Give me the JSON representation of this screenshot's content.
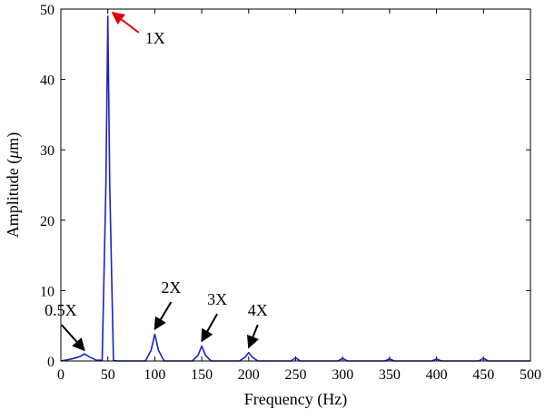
{
  "chart_data": {
    "type": "line",
    "title": "",
    "xlabel": "Frequency (Hz)",
    "ylabel_prefix": "Amplitude (",
    "ylabel_symbol": "μ",
    "ylabel_suffix": "m)",
    "xlim": [
      0,
      500
    ],
    "ylim": [
      0,
      50
    ],
    "xticks": [
      "0",
      "50",
      "100",
      "150",
      "200",
      "250",
      "300",
      "350",
      "400",
      "450",
      "500"
    ],
    "yticks": [
      "0",
      "10",
      "20",
      "30",
      "40",
      "50"
    ],
    "grid": false,
    "line_color": "#1a22c8",
    "series": [
      {
        "x": [
          0,
          12,
          20,
          25,
          30,
          38,
          44,
          48,
          50,
          52,
          56,
          60,
          90,
          96,
          100,
          104,
          110,
          140,
          146,
          150,
          154,
          160,
          190,
          196,
          200,
          204,
          210,
          245,
          250,
          255,
          295,
          300,
          305,
          345,
          350,
          355,
          395,
          400,
          405,
          445,
          450,
          455,
          500
        ],
        "y": [
          0,
          0.3,
          0.6,
          1.0,
          0.6,
          0.1,
          0.1,
          25,
          49,
          25,
          0.1,
          0,
          0,
          1.5,
          3.8,
          1.5,
          0,
          0,
          0.8,
          2.1,
          0.8,
          0,
          0,
          0.5,
          1.2,
          0.5,
          0,
          0,
          0.45,
          0,
          0,
          0.4,
          0,
          0,
          0.3,
          0,
          0,
          0.3,
          0,
          0,
          0.4,
          0,
          0
        ]
      }
    ],
    "annotations": [
      {
        "text": "1X",
        "color": "#e00000",
        "x": 52,
        "y": 49.5
      },
      {
        "text": "0.5X",
        "color": "#000000",
        "x": 25,
        "y": 1.0
      },
      {
        "text": "2X",
        "color": "#000000",
        "x": 100,
        "y": 4.0
      },
      {
        "text": "3X",
        "color": "#000000",
        "x": 150,
        "y": 2.3
      },
      {
        "text": "4X",
        "color": "#000000",
        "x": 200,
        "y": 1.4
      }
    ]
  }
}
